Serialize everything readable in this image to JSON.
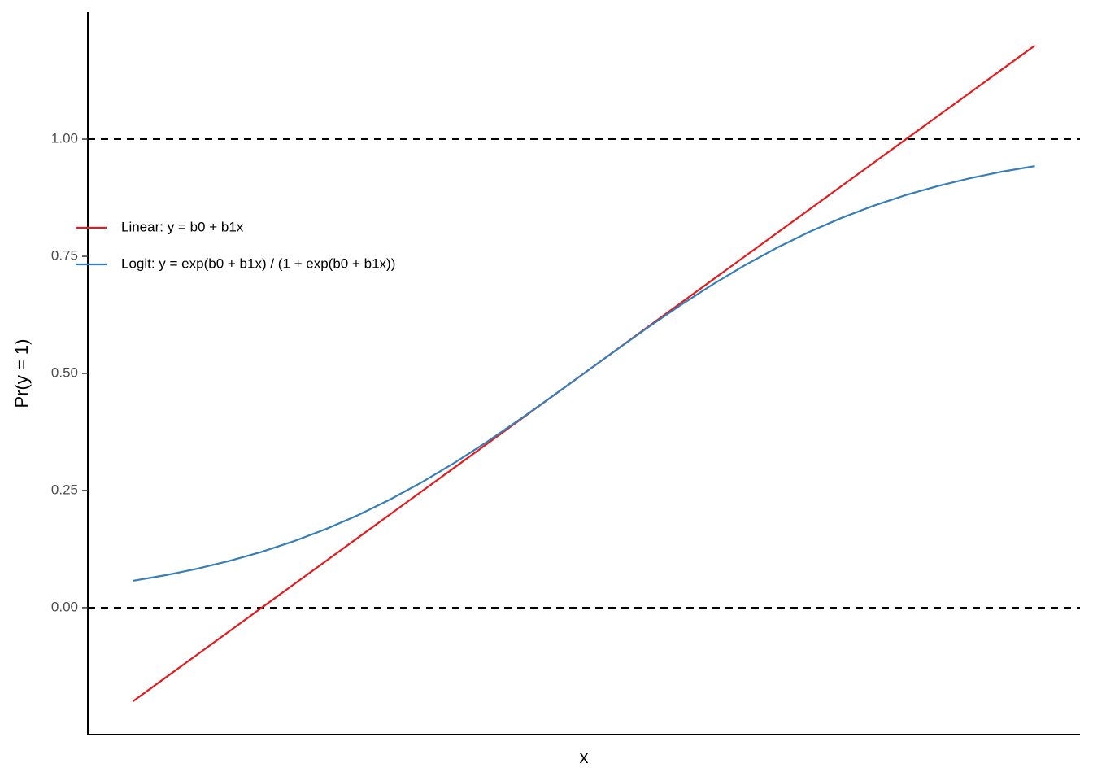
{
  "chart_data": {
    "type": "line",
    "xlabel": "x",
    "ylabel": "Pr(y = 1)",
    "x": [
      -2.8,
      -2.6,
      -2.4,
      -2.2,
      -2.0,
      -1.8,
      -1.6,
      -1.4,
      -1.2,
      -1.0,
      -0.8,
      -0.6,
      -0.4,
      -0.2,
      0,
      0.2,
      0.4,
      0.6,
      0.8,
      1.0,
      1.2,
      1.4,
      1.6,
      1.8,
      2.0,
      2.2,
      2.4,
      2.6,
      2.8
    ],
    "series": [
      {
        "name": "Linear: y = b0 + b1x",
        "color": "#e41a1c",
        "values": [
          -0.2,
          -0.15,
          -0.1,
          -0.05,
          0,
          0.05,
          0.1,
          0.15,
          0.2,
          0.25,
          0.3,
          0.35,
          0.4,
          0.45,
          0.5,
          0.55,
          0.6,
          0.65,
          0.7,
          0.75,
          0.8,
          0.85,
          0.9,
          0.95,
          1.0,
          1.05,
          1.1,
          1.15,
          1.2
        ]
      },
      {
        "name": "Logit: y = exp(b0 + b1x) / (1 + exp(b0 + b1x))",
        "color": "#377eb8",
        "values": [
          0.0573,
          0.0691,
          0.0832,
          0.0998,
          0.1192,
          0.1419,
          0.168,
          0.1978,
          0.2315,
          0.2689,
          0.31,
          0.3543,
          0.4013,
          0.4502,
          0.5,
          0.5498,
          0.5987,
          0.6457,
          0.69,
          0.7311,
          0.7685,
          0.8022,
          0.832,
          0.8581,
          0.8808,
          0.9002,
          0.9168,
          0.9309,
          0.9427
        ]
      }
    ],
    "xlim": [
      -3.08,
      3.08
    ],
    "ylim": [
      -0.271,
      1.271
    ],
    "yticks": [
      {
        "value": 0,
        "label": "0.00"
      },
      {
        "value": 0.25,
        "label": "0.25"
      },
      {
        "value": 0.5,
        "label": "0.50"
      },
      {
        "value": 0.75,
        "label": "0.75"
      },
      {
        "value": 1,
        "label": "1.00"
      }
    ],
    "hlines": [
      0,
      1
    ],
    "legend": "top-left"
  }
}
